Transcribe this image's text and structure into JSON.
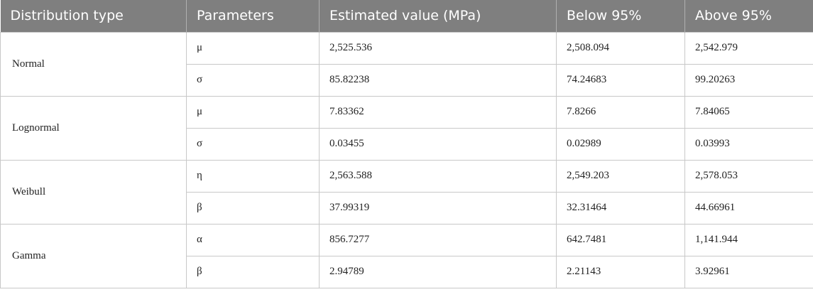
{
  "headers": [
    "Distribution type",
    "Parameters",
    "Estimated value (MPa)",
    "Below 95%",
    "Above 95%"
  ],
  "groups": [
    {
      "type": "Normal",
      "rows": [
        {
          "param": "μ",
          "estimate": "2,525.536",
          "below": "2,508.094",
          "above": "2,542.979"
        },
        {
          "param": "σ",
          "estimate": "85.82238",
          "below": "74.24683",
          "above": "99.20263"
        }
      ]
    },
    {
      "type": "Lognormal",
      "rows": [
        {
          "param": "μ",
          "estimate": "7.83362",
          "below": "7.8266",
          "above": "7.84065"
        },
        {
          "param": "σ",
          "estimate": "0.03455",
          "below": "0.02989",
          "above": "0.03993"
        }
      ]
    },
    {
      "type": "Weibull",
      "rows": [
        {
          "param": "η",
          "estimate": "2,563.588",
          "below": "2,549.203",
          "above": "2,578.053"
        },
        {
          "param": "β",
          "estimate": "37.99319",
          "below": "32.31464",
          "above": "44.66961"
        }
      ]
    },
    {
      "type": "Gamma",
      "rows": [
        {
          "param": "α",
          "estimate": "856.7277",
          "below": "642.7481",
          "above": "1,141.944"
        },
        {
          "param": "β",
          "estimate": "2.94789",
          "below": "2.21143",
          "above": "3.92961"
        }
      ]
    }
  ]
}
